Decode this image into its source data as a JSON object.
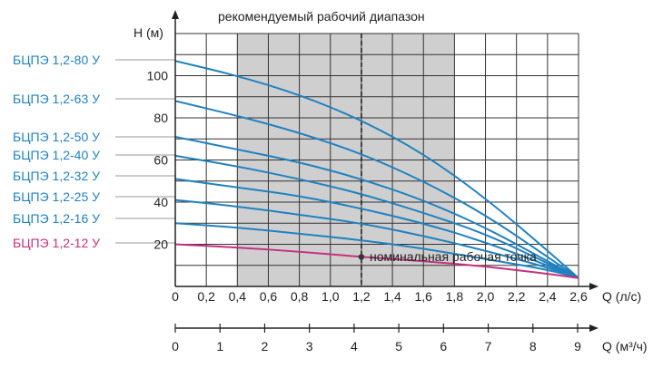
{
  "chart_data": {
    "type": "line",
    "title": "рекомендуемый рабочий диапазон",
    "ylabel": "H (м)",
    "xlabel": "Q (л/с)",
    "xlabel2": "Q (м³/ч)",
    "xlim": [
      0,
      2.6
    ],
    "ylim": [
      0,
      120
    ],
    "x_ticks": [
      "0",
      "0,2",
      "0,4",
      "0,6",
      "0,8",
      "1,0",
      "1,2",
      "1,4",
      "1,6",
      "1,8",
      "2,0",
      "2,2",
      "2,4",
      "2,6"
    ],
    "y_ticks": [
      "20",
      "40",
      "60",
      "80",
      "100"
    ],
    "x2_ticks": [
      "0",
      "1",
      "2",
      "3",
      "4",
      "5",
      "6",
      "7",
      "8",
      "9"
    ],
    "recommended_range": [
      0.4,
      1.8
    ],
    "nominal_q": 1.2,
    "annotation": "номинальная рабочая точка",
    "grid": true,
    "colors": {
      "blue": "#1f82c0",
      "pink": "#c72f7d",
      "band": "#cfcfcf"
    },
    "series": [
      {
        "name": "БЦПЭ 1,2-80 У",
        "color": "#1f82c0",
        "x": [
          0,
          0.4,
          0.8,
          1.2,
          1.6,
          2.0,
          2.4,
          2.6
        ],
        "y": [
          107,
          100,
          91,
          79,
          63,
          42,
          17,
          4
        ]
      },
      {
        "name": "БЦПЭ 1,2-63 У",
        "color": "#1f82c0",
        "x": [
          0,
          0.4,
          0.8,
          1.2,
          1.6,
          2.0,
          2.4,
          2.6
        ],
        "y": [
          88,
          81,
          73,
          63,
          50,
          34,
          14,
          4
        ]
      },
      {
        "name": "БЦПЭ 1,2-50 У",
        "color": "#1f82c0",
        "x": [
          0,
          0.4,
          0.8,
          1.2,
          1.6,
          2.0,
          2.4,
          2.6
        ],
        "y": [
          71,
          65,
          59,
          51,
          41,
          28,
          12,
          4
        ]
      },
      {
        "name": "БЦПЭ 1,2-40 У",
        "color": "#1f82c0",
        "x": [
          0,
          0.4,
          0.8,
          1.2,
          1.6,
          2.0,
          2.4,
          2.6
        ],
        "y": [
          62,
          57,
          51,
          44,
          35,
          25,
          11,
          4
        ]
      },
      {
        "name": "БЦПЭ 1,2-32 У",
        "color": "#1f82c0",
        "x": [
          0,
          0.4,
          0.8,
          1.2,
          1.6,
          2.0,
          2.4,
          2.6
        ],
        "y": [
          51,
          47,
          43,
          37,
          30,
          21,
          10,
          4
        ]
      },
      {
        "name": "БЦПЭ 1,2-25 У",
        "color": "#1f82c0",
        "x": [
          0,
          0.4,
          0.8,
          1.2,
          1.6,
          2.0,
          2.4,
          2.6
        ],
        "y": [
          41,
          38,
          34,
          30,
          24,
          17,
          9,
          4
        ]
      },
      {
        "name": "БЦПЭ 1,2-16 У",
        "color": "#1f82c0",
        "x": [
          0,
          0.4,
          0.8,
          1.2,
          1.6,
          2.0,
          2.4,
          2.6
        ],
        "y": [
          30,
          28,
          25,
          22,
          18,
          13,
          8,
          4
        ]
      },
      {
        "name": "БЦПЭ 1,2-12 У",
        "color": "#c72f7d",
        "x": [
          0,
          0.4,
          0.8,
          1.2,
          1.6,
          2.0,
          2.4,
          2.6
        ],
        "y": [
          20,
          18.5,
          16.5,
          14,
          12,
          9.5,
          6,
          4
        ]
      }
    ]
  }
}
